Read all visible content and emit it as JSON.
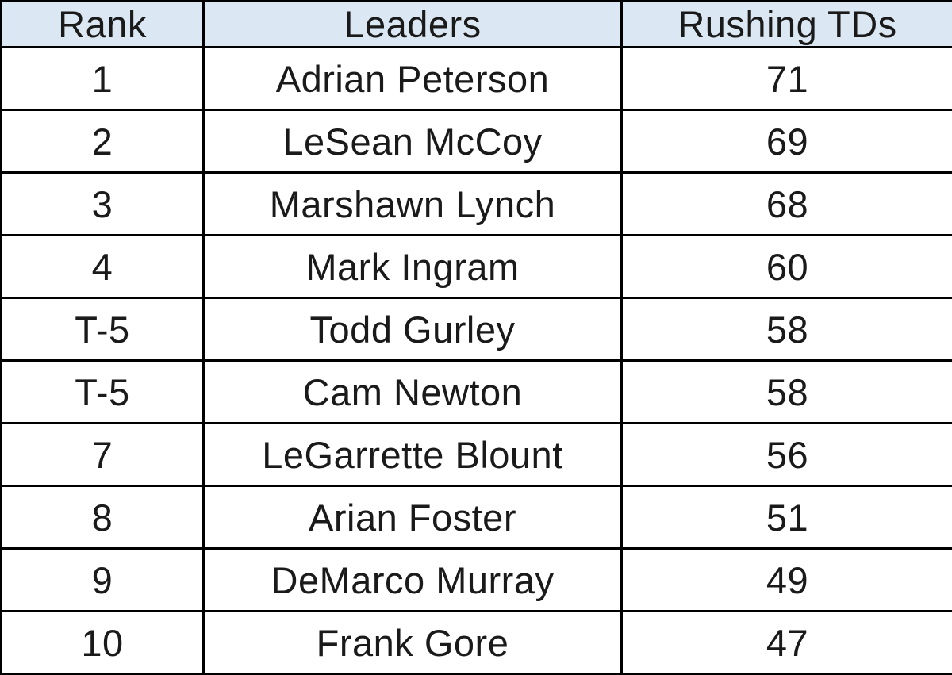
{
  "colors": {
    "header_bg": "#dbe8f3",
    "border": "#000000",
    "text": "#1a1a1a"
  },
  "chart_data": {
    "type": "table",
    "columns": [
      "Rank",
      "Leaders",
      "Rushing TDs"
    ],
    "rows": [
      {
        "rank": "1",
        "leader": "Adrian Peterson",
        "tds": "71"
      },
      {
        "rank": "2",
        "leader": "LeSean McCoy",
        "tds": "69"
      },
      {
        "rank": "3",
        "leader": "Marshawn Lynch",
        "tds": "68"
      },
      {
        "rank": "4",
        "leader": "Mark Ingram",
        "tds": "60"
      },
      {
        "rank": "T-5",
        "leader": "Todd Gurley",
        "tds": "58"
      },
      {
        "rank": "T-5",
        "leader": "Cam Newton",
        "tds": "58"
      },
      {
        "rank": "7",
        "leader": "LeGarrette Blount",
        "tds": "56"
      },
      {
        "rank": "8",
        "leader": "Arian Foster",
        "tds": "51"
      },
      {
        "rank": "9",
        "leader": "DeMarco Murray",
        "tds": "49"
      },
      {
        "rank": "10",
        "leader": "Frank Gore",
        "tds": "47"
      }
    ]
  }
}
